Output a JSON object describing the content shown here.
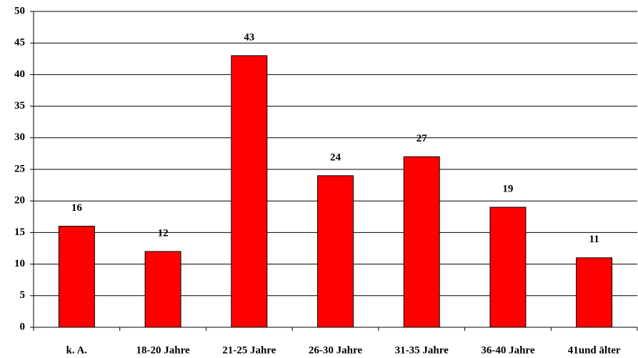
{
  "chart_data": {
    "type": "bar",
    "categories": [
      "k. A.",
      "18-20 Jahre",
      "21-25 Jahre",
      "26-30 Jahre",
      "31-35 Jahre",
      "36-40 Jahre",
      "41und älter"
    ],
    "values": [
      16,
      12,
      43,
      24,
      27,
      19,
      11
    ],
    "color": "#ff0000",
    "ylim": [
      0,
      50
    ],
    "yticks": [
      0,
      5,
      10,
      15,
      20,
      25,
      30,
      35,
      40,
      45,
      50
    ],
    "grid": true
  }
}
